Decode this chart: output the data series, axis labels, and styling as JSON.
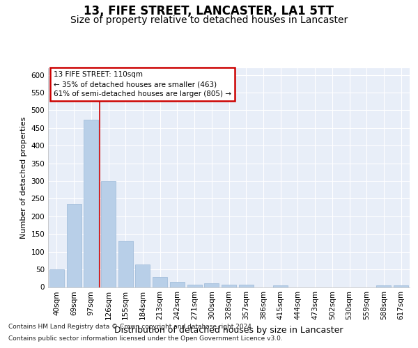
{
  "title": "13, FIFE STREET, LANCASTER, LA1 5TT",
  "subtitle": "Size of property relative to detached houses in Lancaster",
  "xlabel": "Distribution of detached houses by size in Lancaster",
  "ylabel": "Number of detached properties",
  "categories": [
    "40sqm",
    "69sqm",
    "97sqm",
    "126sqm",
    "155sqm",
    "184sqm",
    "213sqm",
    "242sqm",
    "271sqm",
    "300sqm",
    "328sqm",
    "357sqm",
    "386sqm",
    "415sqm",
    "444sqm",
    "473sqm",
    "502sqm",
    "530sqm",
    "559sqm",
    "588sqm",
    "617sqm"
  ],
  "values": [
    50,
    236,
    473,
    300,
    130,
    63,
    28,
    15,
    6,
    10,
    7,
    6,
    0,
    5,
    0,
    0,
    0,
    0,
    0,
    5,
    5
  ],
  "bar_color": "#b8cfe8",
  "bar_edge_color": "#9ab8d8",
  "highlight_line_color": "#cc0000",
  "annotation_text": "13 FIFE STREET: 110sqm\n← 35% of detached houses are smaller (463)\n61% of semi-detached houses are larger (805) →",
  "annotation_box_color": "#cc0000",
  "ylim": [
    0,
    620
  ],
  "yticks": [
    0,
    50,
    100,
    150,
    200,
    250,
    300,
    350,
    400,
    450,
    500,
    550,
    600
  ],
  "grid_color": "#ffffff",
  "background_color": "#e8eef8",
  "footer_line1": "Contains HM Land Registry data © Crown copyright and database right 2024.",
  "footer_line2": "Contains public sector information licensed under the Open Government Licence v3.0.",
  "title_fontsize": 12,
  "subtitle_fontsize": 10,
  "xlabel_fontsize": 9,
  "ylabel_fontsize": 8,
  "tick_fontsize": 7.5,
  "annotation_fontsize": 7.5,
  "footer_fontsize": 6.5
}
